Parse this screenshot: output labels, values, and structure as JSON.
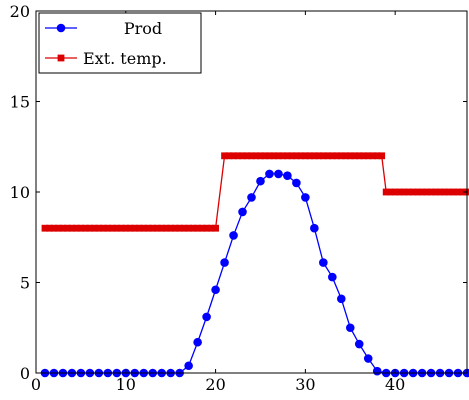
{
  "chart_data": {
    "type": "line",
    "title": "",
    "xlabel": "",
    "ylabel": "",
    "xlim": [
      0,
      48
    ],
    "ylim": [
      0,
      20
    ],
    "x_ticks": [
      0,
      10,
      20,
      30,
      40
    ],
    "y_ticks": [
      0,
      5,
      10,
      15,
      20
    ],
    "grid": false,
    "legend_position": "top-left",
    "series": [
      {
        "name": "Prod",
        "color": "#0000ff",
        "marker": "circle",
        "x": [
          1,
          2,
          3,
          4,
          5,
          6,
          7,
          8,
          9,
          10,
          11,
          12,
          13,
          14,
          15,
          16,
          17,
          18,
          19,
          20,
          21,
          22,
          23,
          24,
          25,
          26,
          27,
          28,
          29,
          30,
          31,
          32,
          33,
          34,
          35,
          36,
          37,
          38,
          39,
          40,
          41,
          42,
          43,
          44,
          45,
          46,
          47,
          48
        ],
        "y": [
          0,
          0,
          0,
          0,
          0,
          0,
          0,
          0,
          0,
          0,
          0,
          0,
          0,
          0,
          0,
          0,
          0.4,
          1.7,
          3.1,
          4.6,
          6.1,
          7.6,
          8.9,
          9.7,
          10.6,
          11.0,
          11.0,
          10.9,
          10.5,
          9.7,
          8.0,
          6.1,
          5.3,
          4.1,
          2.5,
          1.6,
          0.8,
          0.1,
          0,
          0,
          0,
          0,
          0,
          0,
          0,
          0,
          0,
          0
        ]
      },
      {
        "name": "Ext. temp.",
        "color": "#dd0000",
        "marker": "square",
        "x": [
          1,
          1.5,
          2,
          2.5,
          3,
          3.5,
          4,
          4.5,
          5,
          5.5,
          6,
          6.5,
          7,
          7.5,
          8,
          8.5,
          9,
          9.5,
          10,
          10.5,
          11,
          11.5,
          12,
          12.5,
          13,
          13.5,
          14,
          14.5,
          15,
          15.5,
          16,
          16.5,
          17,
          17.5,
          18,
          18.5,
          19,
          19.5,
          20,
          21,
          21.5,
          22,
          22.5,
          23,
          23.5,
          24,
          24.5,
          25,
          25.5,
          26,
          26.5,
          27,
          27.5,
          28,
          28.5,
          29,
          29.5,
          30,
          30.5,
          31,
          31.5,
          32,
          32.5,
          33,
          33.5,
          34,
          34.5,
          35,
          35.5,
          36,
          36.5,
          37,
          37.5,
          38,
          38.5,
          39,
          39.5,
          40,
          40.5,
          41,
          41.5,
          42,
          42.5,
          43,
          43.5,
          44,
          44.5,
          45,
          45.5,
          46,
          46.5,
          47,
          47.5,
          48
        ],
        "y": [
          8,
          8,
          8,
          8,
          8,
          8,
          8,
          8,
          8,
          8,
          8,
          8,
          8,
          8,
          8,
          8,
          8,
          8,
          8,
          8,
          8,
          8,
          8,
          8,
          8,
          8,
          8,
          8,
          8,
          8,
          8,
          8,
          8,
          8,
          8,
          8,
          8,
          8,
          8,
          12,
          12,
          12,
          12,
          12,
          12,
          12,
          12,
          12,
          12,
          12,
          12,
          12,
          12,
          12,
          12,
          12,
          12,
          12,
          12,
          12,
          12,
          12,
          12,
          12,
          12,
          12,
          12,
          12,
          12,
          12,
          12,
          12,
          12,
          12,
          12,
          10,
          10,
          10,
          10,
          10,
          10,
          10,
          10,
          10,
          10,
          10,
          10,
          10,
          10,
          10,
          10,
          10,
          10,
          10
        ]
      }
    ]
  }
}
